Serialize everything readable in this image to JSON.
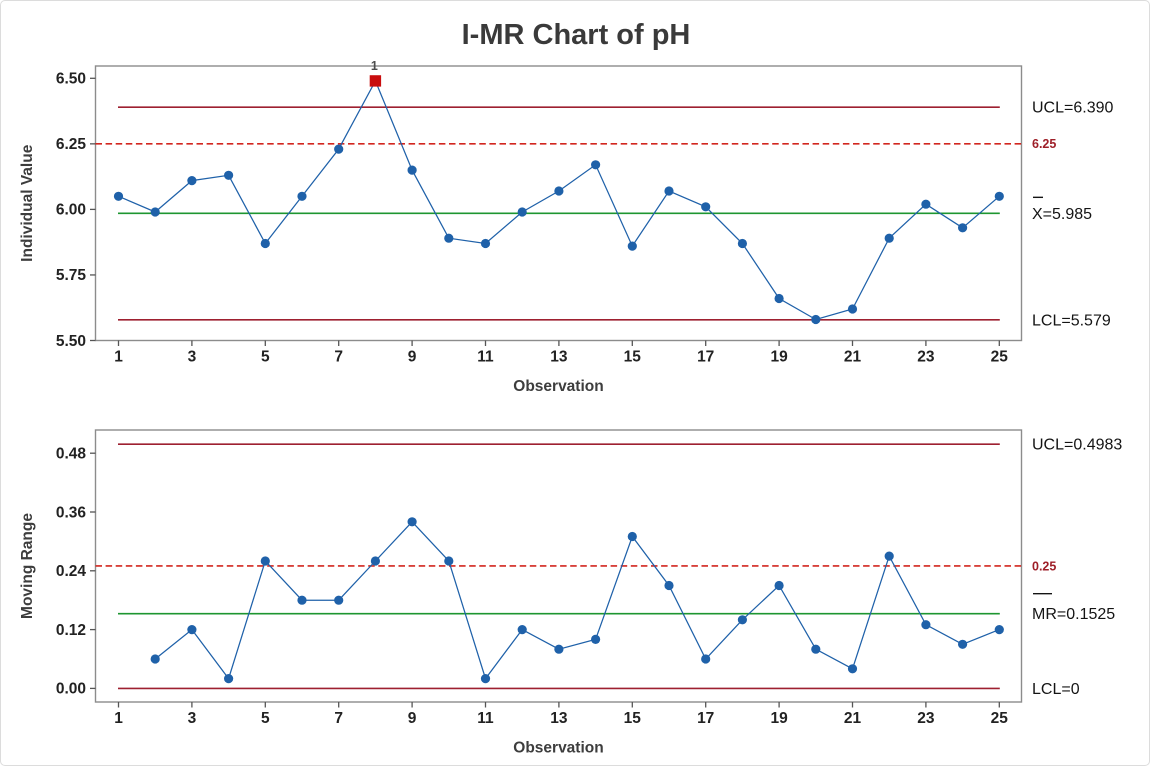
{
  "title": "I-MR Chart of pH",
  "colors": {
    "series_blue": "#1f61a9",
    "center_line_green": "#1e9630",
    "control_limit_red": "#9e2030",
    "spec_line_red": "#d2261f",
    "spec_label_red": "#9e1f28",
    "out_of_control_red": "#c90d0e",
    "plot_border_gray": "#8c8c8c",
    "tick_gray": "#555555"
  },
  "chart_data": [
    {
      "type": "line",
      "name": "individuals-chart",
      "title": "",
      "xlabel": "Observation",
      "ylabel": "Individual Value",
      "x": [
        1,
        2,
        3,
        4,
        5,
        6,
        7,
        8,
        9,
        10,
        11,
        12,
        13,
        14,
        15,
        16,
        17,
        18,
        19,
        20,
        21,
        22,
        23,
        24,
        25
      ],
      "values": [
        6.05,
        5.99,
        6.11,
        6.13,
        5.87,
        6.05,
        6.23,
        6.49,
        6.15,
        5.89,
        5.87,
        5.99,
        6.07,
        6.17,
        5.86,
        6.07,
        6.01,
        5.87,
        5.66,
        5.58,
        5.62,
        5.89,
        6.02,
        5.93,
        6.05
      ],
      "center_line": 5.985,
      "ucl": 6.39,
      "lcl": 5.579,
      "spec_line": 6.25,
      "out_of_control": [
        {
          "x": 8,
          "value": 6.49,
          "label": "1"
        }
      ],
      "ylim": [
        5.5,
        6.5469
      ],
      "yticks": [
        {
          "v": 5.5,
          "label": "5.50"
        },
        {
          "v": 5.75,
          "label": "5.75"
        },
        {
          "v": 6.0,
          "label": "6.00"
        },
        {
          "v": 6.25,
          "label": "6.25"
        },
        {
          "v": 6.5,
          "label": "6.50"
        }
      ],
      "xticks": [
        {
          "v": 1,
          "label": "1"
        },
        {
          "v": 3,
          "label": "3"
        },
        {
          "v": 5,
          "label": "5"
        },
        {
          "v": 7,
          "label": "7"
        },
        {
          "v": 9,
          "label": "9"
        },
        {
          "v": 11,
          "label": "11"
        },
        {
          "v": 13,
          "label": "13"
        },
        {
          "v": 15,
          "label": "15"
        },
        {
          "v": 17,
          "label": "17"
        },
        {
          "v": 19,
          "label": "19"
        },
        {
          "v": 21,
          "label": "21"
        },
        {
          "v": 23,
          "label": "23"
        },
        {
          "v": 25,
          "label": "25"
        }
      ],
      "annotations": {
        "ucl": "UCL=6.390",
        "center": "X=5.985",
        "lcl": "LCL=5.579",
        "spec": "6.25"
      },
      "legend_position": "right",
      "grid": false
    },
    {
      "type": "line",
      "name": "moving-range-chart",
      "title": "",
      "xlabel": "Observation",
      "ylabel": "Moving Range",
      "x": [
        1,
        2,
        3,
        4,
        5,
        6,
        7,
        8,
        9,
        10,
        11,
        12,
        13,
        14,
        15,
        16,
        17,
        18,
        19,
        20,
        21,
        22,
        23,
        24,
        25
      ],
      "values": [
        null,
        0.06,
        0.12,
        0.02,
        0.26,
        0.18,
        0.18,
        0.26,
        0.34,
        0.26,
        0.02,
        0.12,
        0.08,
        0.1,
        0.31,
        0.21,
        0.06,
        0.14,
        0.21,
        0.08,
        0.04,
        0.27,
        0.13,
        0.09,
        0.12
      ],
      "center_line": 0.1525,
      "ucl": 0.4983,
      "lcl": 0,
      "spec_line": 0.25,
      "out_of_control": [],
      "ylim": [
        -0.02776,
        0.52735
      ],
      "yticks": [
        {
          "v": 0.0,
          "label": "0.00"
        },
        {
          "v": 0.12,
          "label": "0.12"
        },
        {
          "v": 0.24,
          "label": "0.24"
        },
        {
          "v": 0.36,
          "label": "0.36"
        },
        {
          "v": 0.48,
          "label": "0.48"
        }
      ],
      "xticks": [
        {
          "v": 1,
          "label": "1"
        },
        {
          "v": 3,
          "label": "3"
        },
        {
          "v": 5,
          "label": "5"
        },
        {
          "v": 7,
          "label": "7"
        },
        {
          "v": 9,
          "label": "9"
        },
        {
          "v": 11,
          "label": "11"
        },
        {
          "v": 13,
          "label": "13"
        },
        {
          "v": 15,
          "label": "15"
        },
        {
          "v": 17,
          "label": "17"
        },
        {
          "v": 19,
          "label": "19"
        },
        {
          "v": 21,
          "label": "21"
        },
        {
          "v": 23,
          "label": "23"
        },
        {
          "v": 25,
          "label": "25"
        }
      ],
      "annotations": {
        "ucl": "UCL=0.4983",
        "center": "MR=0.1525",
        "lcl": "LCL=0",
        "spec": "0.25"
      },
      "legend_position": "right",
      "grid": false
    }
  ]
}
